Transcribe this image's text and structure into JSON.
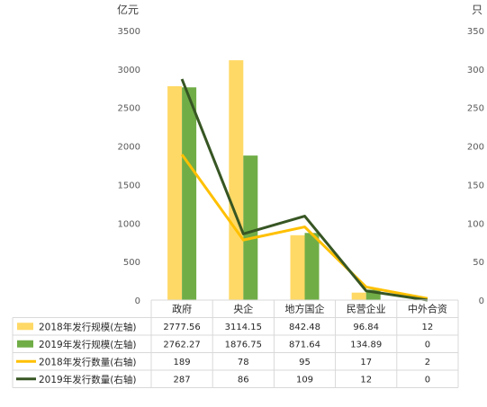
{
  "chart_data": {
    "type": "bar",
    "y_unit_left": "亿元",
    "y_unit_right": "只",
    "categories": [
      "政府",
      "央企",
      "地方国企",
      "民营企业",
      "中外合资"
    ],
    "ylim_left": [
      0,
      3500
    ],
    "ylim_right": [
      0,
      350
    ],
    "yticks_left": [
      "0",
      "500",
      "1000",
      "1500",
      "2000",
      "2500",
      "3000",
      "3500"
    ],
    "yticks_right": [
      "0",
      "50",
      "100",
      "150",
      "200",
      "250",
      "300",
      "350"
    ],
    "grid": false,
    "legend": "data-table",
    "series": [
      {
        "name": "2018年发行规模(左轴)",
        "type": "bar",
        "axis": "left",
        "color": "#FFD966",
        "values": [
          2777.56,
          3114.15,
          842.48,
          96.84,
          12
        ],
        "labels": [
          "2777.56",
          "3114.15",
          "842.48",
          "96.84",
          "12"
        ]
      },
      {
        "name": "2019年发行规模(左轴)",
        "type": "bar",
        "axis": "left",
        "color": "#70AD47",
        "values": [
          2762.27,
          1876.75,
          871.64,
          134.89,
          0
        ],
        "labels": [
          "2762.27",
          "1876.75",
          "871.64",
          "134.89",
          "0"
        ]
      },
      {
        "name": "2018年发行数量(右轴)",
        "type": "line",
        "axis": "right",
        "color": "#FFC000",
        "values": [
          189,
          78,
          95,
          17,
          2
        ],
        "labels": [
          "189",
          "78",
          "95",
          "17",
          "2"
        ]
      },
      {
        "name": "2019年发行数量(右轴)",
        "type": "line",
        "axis": "right",
        "color": "#375623",
        "values": [
          287,
          86,
          109,
          12,
          0
        ],
        "labels": [
          "287",
          "86",
          "109",
          "12",
          "0"
        ]
      }
    ]
  }
}
